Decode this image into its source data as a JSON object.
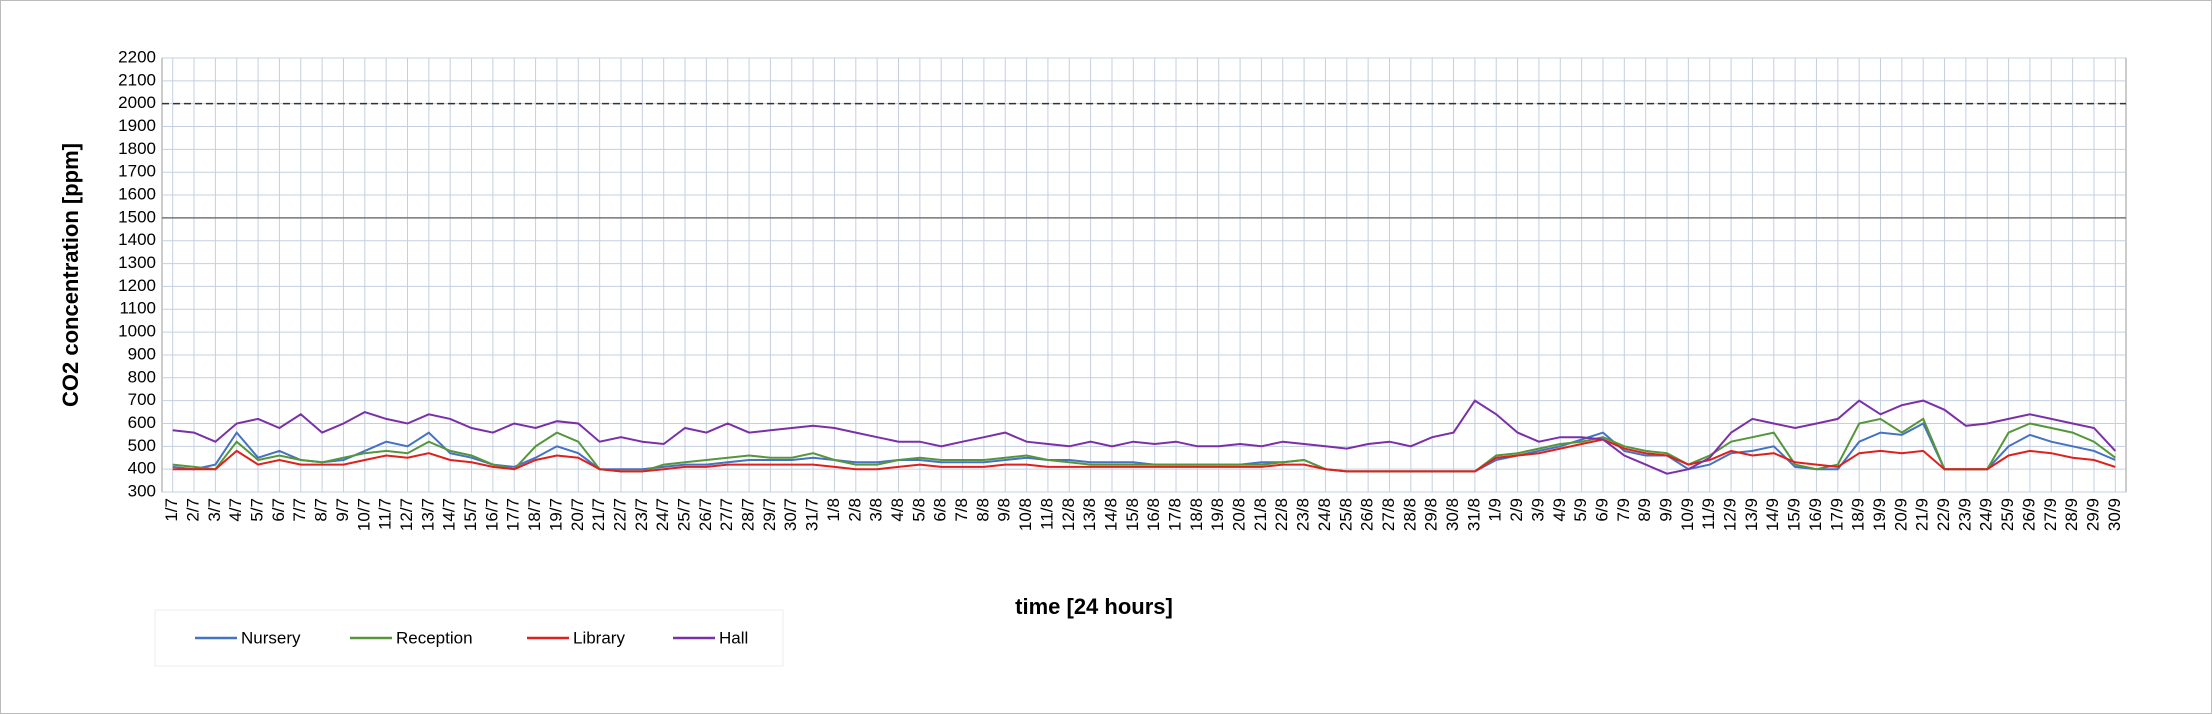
{
  "chart_data": {
    "type": "line",
    "ylabel": "CO2  concentration [ppm]",
    "xlabel": "time  [24 hours]",
    "categories": [
      "1/7",
      "2/7",
      "3/7",
      "4/7",
      "5/7",
      "6/7",
      "7/7",
      "8/7",
      "9/7",
      "10/7",
      "11/7",
      "12/7",
      "13/7",
      "14/7",
      "15/7",
      "16/7",
      "17/7",
      "18/7",
      "19/7",
      "20/7",
      "21/7",
      "22/7",
      "23/7",
      "24/7",
      "25/7",
      "26/7",
      "27/7",
      "28/7",
      "29/7",
      "30/7",
      "31/7",
      "1/8",
      "2/8",
      "3/8",
      "4/8",
      "5/8",
      "6/8",
      "7/8",
      "8/8",
      "9/8",
      "10/8",
      "11/8",
      "12/8",
      "13/8",
      "14/8",
      "15/8",
      "16/8",
      "17/8",
      "18/8",
      "19/8",
      "20/8",
      "21/8",
      "22/8",
      "23/8",
      "24/8",
      "25/8",
      "26/8",
      "27/8",
      "28/8",
      "29/8",
      "30/8",
      "31/8",
      "1/9",
      "2/9",
      "3/9",
      "4/9",
      "5/9",
      "6/9",
      "7/9",
      "8/9",
      "9/9",
      "10/9",
      "11/9",
      "12/9",
      "13/9",
      "14/9",
      "15/9",
      "16/9",
      "17/9",
      "18/9",
      "19/9",
      "20/9",
      "21/9",
      "22/9",
      "23/9",
      "24/9",
      "25/9",
      "26/9",
      "27/9",
      "28/9",
      "29/9",
      "30/9"
    ],
    "series": [
      {
        "name": "Nursery",
        "color": "#4472c4",
        "values": [
          410,
          400,
          420,
          560,
          450,
          480,
          440,
          430,
          440,
          480,
          520,
          500,
          560,
          470,
          450,
          420,
          410,
          450,
          500,
          470,
          400,
          400,
          400,
          410,
          420,
          420,
          430,
          440,
          440,
          440,
          450,
          440,
          430,
          430,
          440,
          440,
          430,
          430,
          430,
          440,
          450,
          440,
          440,
          430,
          430,
          430,
          420,
          420,
          420,
          420,
          420,
          430,
          430,
          440,
          400,
          390,
          390,
          390,
          390,
          390,
          390,
          390,
          440,
          460,
          480,
          500,
          530,
          560,
          480,
          460,
          460,
          400,
          420,
          470,
          480,
          500,
          410,
          400,
          400,
          520,
          560,
          550,
          600,
          400,
          400,
          400,
          500,
          550,
          520,
          500,
          480,
          440
        ]
      },
      {
        "name": "Reception",
        "color": "#56963a",
        "values": [
          420,
          410,
          400,
          520,
          440,
          460,
          440,
          430,
          450,
          470,
          480,
          470,
          520,
          480,
          460,
          420,
          400,
          500,
          560,
          520,
          400,
          390,
          390,
          420,
          430,
          440,
          450,
          460,
          450,
          450,
          470,
          440,
          420,
          420,
          440,
          450,
          440,
          440,
          440,
          450,
          460,
          440,
          430,
          420,
          420,
          420,
          420,
          420,
          420,
          420,
          420,
          420,
          430,
          440,
          400,
          390,
          390,
          390,
          390,
          390,
          390,
          390,
          460,
          470,
          490,
          510,
          520,
          540,
          500,
          480,
          470,
          420,
          460,
          520,
          540,
          560,
          420,
          400,
          420,
          600,
          620,
          560,
          620,
          400,
          400,
          400,
          560,
          600,
          580,
          560,
          520,
          450
        ]
      },
      {
        "name": "Library",
        "color": "#e0201c",
        "values": [
          400,
          400,
          400,
          480,
          420,
          440,
          420,
          420,
          420,
          440,
          460,
          450,
          470,
          440,
          430,
          410,
          400,
          440,
          460,
          450,
          400,
          390,
          390,
          400,
          410,
          410,
          420,
          420,
          420,
          420,
          420,
          410,
          400,
          400,
          410,
          420,
          410,
          410,
          410,
          420,
          420,
          410,
          410,
          410,
          410,
          410,
          410,
          410,
          410,
          410,
          410,
          410,
          420,
          420,
          400,
          390,
          390,
          390,
          390,
          390,
          390,
          390,
          450,
          460,
          470,
          490,
          510,
          530,
          490,
          470,
          460,
          420,
          440,
          480,
          460,
          470,
          430,
          420,
          410,
          470,
          480,
          470,
          480,
          400,
          400,
          400,
          460,
          480,
          470,
          450,
          440,
          410
        ]
      },
      {
        "name": "Hall",
        "color": "#7a30a8",
        "values": [
          570,
          560,
          520,
          600,
          620,
          580,
          640,
          560,
          600,
          650,
          620,
          600,
          640,
          620,
          580,
          560,
          600,
          580,
          610,
          600,
          520,
          540,
          520,
          510,
          580,
          560,
          600,
          560,
          570,
          580,
          590,
          580,
          560,
          540,
          520,
          520,
          500,
          520,
          540,
          560,
          520,
          510,
          500,
          520,
          500,
          520,
          510,
          520,
          500,
          500,
          510,
          500,
          520,
          510,
          500,
          490,
          510,
          520,
          500,
          540,
          560,
          700,
          640,
          560,
          520,
          540,
          540,
          530,
          460,
          420,
          380,
          400,
          450,
          560,
          620,
          600,
          580,
          600,
          620,
          700,
          640,
          680,
          700,
          660,
          590,
          600,
          620,
          640,
          620,
          600,
          580,
          480
        ]
      }
    ],
    "ylim": [
      300,
      2200
    ],
    "yticks": [
      300,
      400,
      500,
      600,
      700,
      800,
      900,
      1000,
      1100,
      1200,
      1300,
      1400,
      1500,
      1600,
      1700,
      1800,
      1900,
      2000,
      2100,
      2200
    ],
    "grid": true,
    "reference_lines": [
      {
        "value": 1500,
        "style": "solid"
      },
      {
        "value": 2000,
        "style": "dashed"
      }
    ],
    "legend": "bottom-left"
  }
}
